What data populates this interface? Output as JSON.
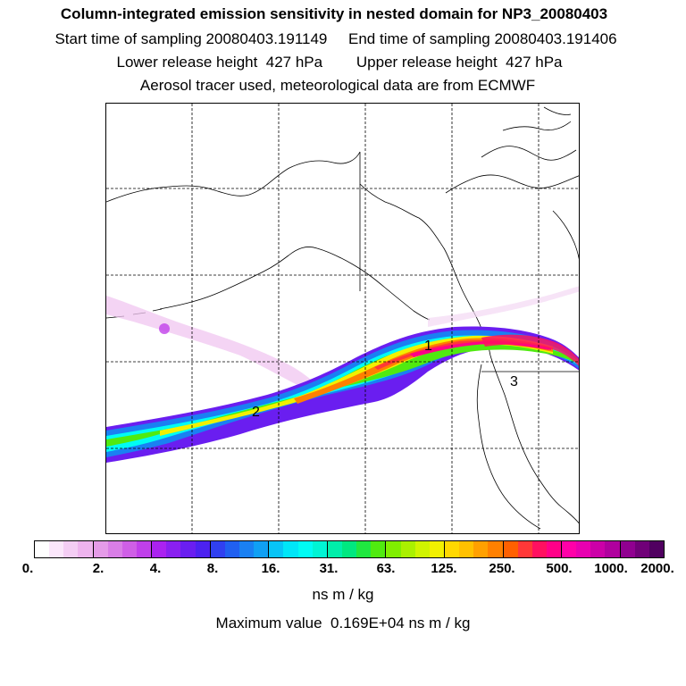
{
  "header": {
    "title": "Column-integrated emission sensitivity in nested domain for NP3_20080403",
    "sampling_line": "Start time of sampling 20080403.191149     End time of sampling 20080403.191406",
    "release_line": "Lower release height  427 hPa        Upper release height  427 hPa",
    "tracer_line": "Aerosol tracer used, meteorological data are from ECMWF"
  },
  "map": {
    "markers": [
      {
        "label": "1"
      },
      {
        "label": "2"
      },
      {
        "label": "3"
      }
    ],
    "gridlines": "dashed"
  },
  "colorbar": {
    "tick_labels": [
      "0.",
      "2.",
      "4.",
      "8.",
      "16.",
      "31.",
      "63.",
      "125.",
      "250.",
      "500.",
      "1000.",
      "2000."
    ],
    "colors": [
      "#ffffff",
      "#fbe6fb",
      "#f4cdf4",
      "#eeb4ee",
      "#e59be8",
      "#d97ee6",
      "#cf5fe6",
      "#c040ea",
      "#ab22f0",
      "#8a20f0",
      "#6a1ef0",
      "#4c22f0",
      "#3040f0",
      "#2060f0",
      "#1a80f2",
      "#10a0f4",
      "#08c4f6",
      "#00e6f8",
      "#00fbf4",
      "#00f4d4",
      "#00eeaa",
      "#00e880",
      "#20e840",
      "#50ea10",
      "#80ee00",
      "#aaf000",
      "#d0f400",
      "#f2f000",
      "#ffd800",
      "#ffc000",
      "#ffa000",
      "#ff8000",
      "#ff6000",
      "#ff3838",
      "#ff1060",
      "#ff0088",
      "#ff00a8",
      "#e800b0",
      "#cc00a8",
      "#b0009e",
      "#900090",
      "#700078",
      "#500060"
    ],
    "unit": "ns m / kg"
  },
  "footer": {
    "max_value": "Maximum value  0.169E+04 ns m / kg"
  }
}
